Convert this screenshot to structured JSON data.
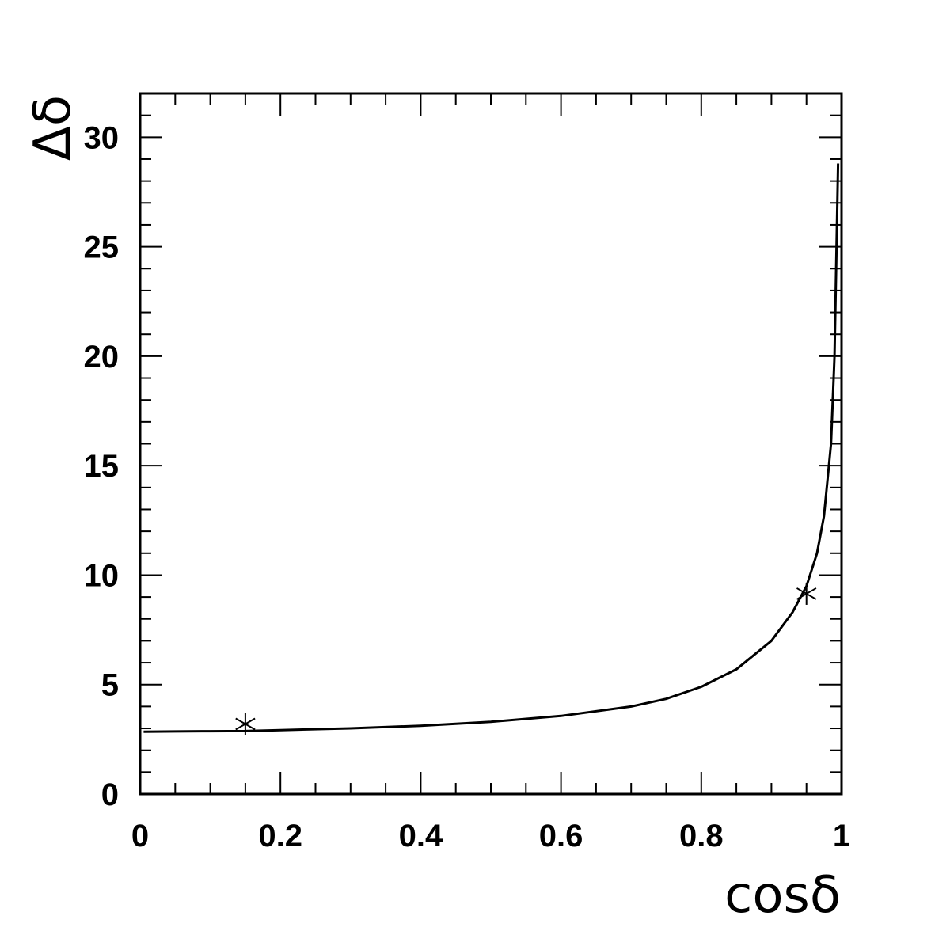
{
  "chart_data": {
    "type": "line",
    "xlabel": "cosδ",
    "ylabel": "Δδ",
    "xlim": [
      0,
      1
    ],
    "ylim": [
      0,
      32
    ],
    "xticks": [
      0,
      0.2,
      0.4,
      0.6,
      0.8,
      1
    ],
    "xtick_labels": [
      "0",
      "0.2",
      "0.4",
      "0.6",
      "0.8",
      "1"
    ],
    "yticks": [
      0,
      5,
      10,
      15,
      20,
      25,
      30
    ],
    "ytick_labels": [
      "0",
      "5",
      "10",
      "15",
      "20",
      "25",
      "30"
    ],
    "grid": false,
    "series": [
      {
        "style": "line",
        "color": "#000000",
        "x": [
          0.005,
          0.05,
          0.1,
          0.15,
          0.2,
          0.3,
          0.4,
          0.5,
          0.6,
          0.7,
          0.75,
          0.8,
          0.85,
          0.9,
          0.93,
          0.95,
          0.965,
          0.975,
          0.985,
          0.99,
          0.995
        ],
        "y": [
          2.85,
          2.86,
          2.87,
          2.88,
          2.92,
          3.0,
          3.12,
          3.3,
          3.57,
          4.0,
          4.35,
          4.9,
          5.7,
          7.0,
          8.3,
          9.5,
          11.0,
          12.7,
          16.0,
          20.0,
          28.8
        ]
      },
      {
        "style": "marker",
        "marker": "star",
        "color": "#000000",
        "x": [
          0.15,
          0.95
        ],
        "y": [
          3.2,
          9.15
        ]
      }
    ]
  }
}
